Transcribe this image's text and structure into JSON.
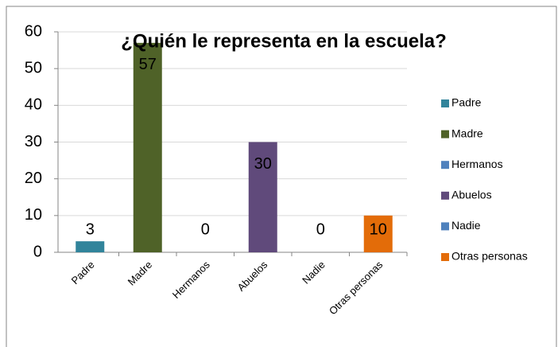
{
  "chart_data": {
    "type": "bar",
    "title": "¿Quién le representa en la escuela?",
    "categories": [
      "Padre",
      "Madre",
      "Hermanos",
      "Abuelos",
      "Nadie",
      "Otras personas"
    ],
    "values": [
      3,
      57,
      0,
      30,
      0,
      10
    ],
    "colors": [
      "#31849b",
      "#4f6228",
      "#4f81bd",
      "#604a7b",
      "#4f81bd",
      "#e36c09"
    ],
    "ylim": [
      0,
      60
    ],
    "yticks": [
      0,
      10,
      20,
      30,
      40,
      50,
      60
    ],
    "grid": true,
    "legend": "right"
  }
}
